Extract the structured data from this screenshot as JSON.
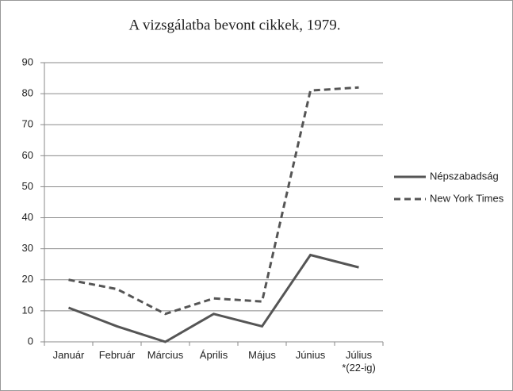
{
  "chart_data": {
    "type": "line",
    "title": "A vizsgálatba bevont cikkek, 1979.",
    "categories": [
      "Január",
      "Február",
      "Március",
      "Április",
      "Május",
      "Június",
      "Július\n*(22-ig)"
    ],
    "series": [
      {
        "name": "Népszabadság",
        "color": "#555555",
        "dash": "solid",
        "values": [
          11,
          5,
          0,
          9,
          5,
          28,
          24
        ]
      },
      {
        "name": "New York Times",
        "color": "#555555",
        "dash": "dashed",
        "values": [
          20,
          17,
          9,
          14,
          13,
          81,
          82
        ]
      }
    ],
    "ylim": [
      0,
      90
    ],
    "yticks": [
      0,
      10,
      20,
      30,
      40,
      50,
      60,
      70,
      80,
      90
    ],
    "grid": true,
    "legend": "right"
  }
}
